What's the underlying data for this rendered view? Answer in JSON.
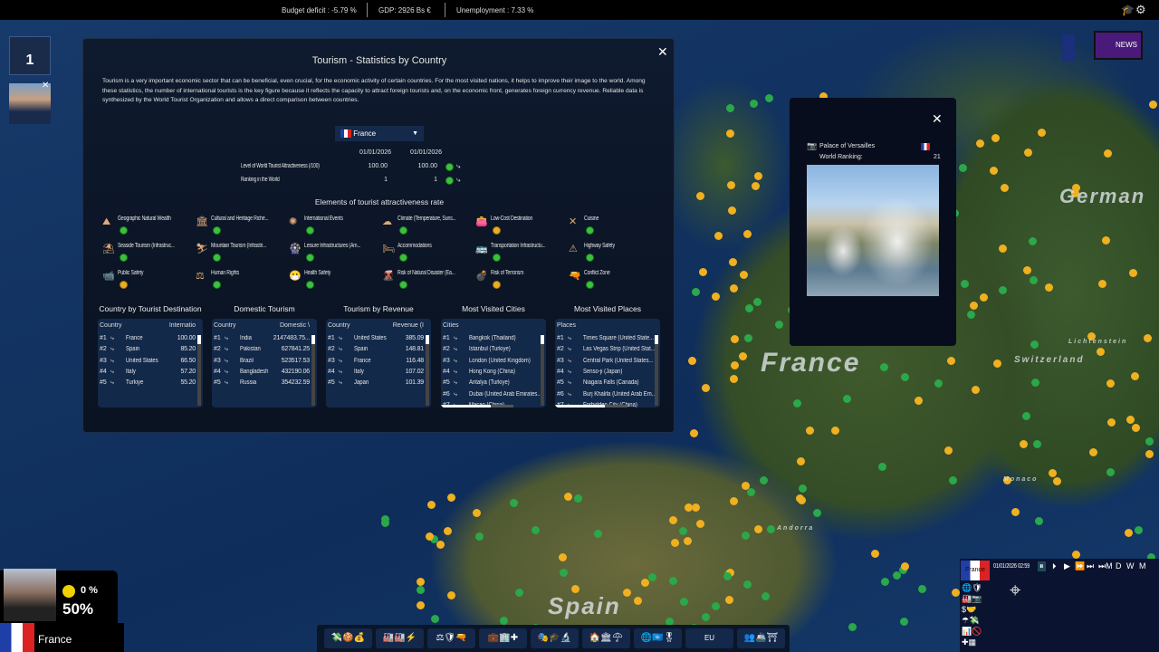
{
  "topbar": {
    "budget": "Budget deficit :   -5.79 %",
    "gdp": "GDP:    2926 Bs  €",
    "unemployment": "Unemployment :   7.33 %"
  },
  "left": {
    "ministers_count": "1"
  },
  "map_labels": {
    "france": "France",
    "germany": "German",
    "spain": "Spain",
    "switzerland": "Switzerland",
    "monaco": "Monaco",
    "andorra": "Andorra",
    "liechtenstein": "Lichtenstein"
  },
  "news": {
    "label": "NEWS"
  },
  "tourism": {
    "title": "Tourism - Statistics by Country",
    "description": "Tourism is a very important economic sector that can be beneficial, even crucial, for the economic activity of certain countries. For the most visited nations, it helps to improve their image to the world. Among these statistics, the number of international tourists is the key figure because it reflects the capacity to attract foreign tourists and, on the economic front, generates foreign currency revenue. Reliable data is synthesized by the World Tourist Organization and allows a direct comparison between countries.",
    "country_select": "France",
    "dates": [
      "01/01/2026",
      "01/01/2026"
    ],
    "stats": [
      {
        "label": "Level of World Tourist Attractiveness (/100)",
        "v1": "100.00",
        "v2": "100.00"
      },
      {
        "label": "Ranking in the World",
        "v1": "1",
        "v2": "1"
      }
    ],
    "elements_title": "Elements of tourist attractiveness rate",
    "elements": [
      {
        "label": "Geographic Natural Wealth",
        "icon": "⛰",
        "mood": "good"
      },
      {
        "label": "Cultural and Heritage Riche...",
        "icon": "🏛",
        "mood": "good"
      },
      {
        "label": "International Events",
        "icon": "✺",
        "mood": "good"
      },
      {
        "label": "Climate (Temperature, Suns...",
        "icon": "☁",
        "mood": "good"
      },
      {
        "label": "Low-Cost Destination",
        "icon": "👛",
        "mood": "neutral"
      },
      {
        "label": "Cuisine",
        "icon": "✕",
        "mood": "good"
      },
      {
        "label": "Seaside Tourism (Infrastruc...",
        "icon": "⛱",
        "mood": "good"
      },
      {
        "label": "Mountain Tourism (Infrastri...",
        "icon": "⛷",
        "mood": "good"
      },
      {
        "label": "Leisure Infrastructures (Am...",
        "icon": "🎡",
        "mood": "good"
      },
      {
        "label": "Accommodations",
        "icon": "🛏",
        "mood": "good"
      },
      {
        "label": "Transportation Infrastructu...",
        "icon": "🚌",
        "mood": "good"
      },
      {
        "label": "Highway Safety",
        "icon": "⚠",
        "mood": "good"
      },
      {
        "label": "Public Safety",
        "icon": "📹",
        "mood": "neutral"
      },
      {
        "label": "Human Rights",
        "icon": "⚖",
        "mood": "good"
      },
      {
        "label": "Health Safety",
        "icon": "😷",
        "mood": "good"
      },
      {
        "label": "Risk of Natural Disaster (Ea...",
        "icon": "🌋",
        "mood": "good"
      },
      {
        "label": "Risk of Terrorism",
        "icon": "💣",
        "mood": "neutral"
      },
      {
        "label": "Conflict Zone",
        "icon": "🔫",
        "mood": "good"
      }
    ],
    "tables": [
      {
        "title": "Country by Tourist Destination",
        "col1": "Country",
        "col2": "Internatio",
        "rows": [
          [
            "#1",
            "France",
            "100.00"
          ],
          [
            "#2",
            "Spain",
            "85.20"
          ],
          [
            "#3",
            "United States",
            "66.50"
          ],
          [
            "#4",
            "Italy",
            "57.20"
          ],
          [
            "#5",
            "Turkiye",
            "55.20"
          ]
        ]
      },
      {
        "title": "Domestic Tourism",
        "col1": "Country",
        "col2": "Domestic \\",
        "rows": [
          [
            "#1",
            "India",
            "2147483.75..."
          ],
          [
            "#2",
            "Pakistan",
            "627841.25"
          ],
          [
            "#3",
            "Brazil",
            "523517.53"
          ],
          [
            "#4",
            "Bangladesh",
            "432190.06"
          ],
          [
            "#5",
            "Russia",
            "354232.59"
          ]
        ]
      },
      {
        "title": "Tourism by Revenue",
        "col1": "Country",
        "col2": "Revenue (I",
        "rows": [
          [
            "#1",
            "United States",
            "385.09"
          ],
          [
            "#2",
            "Spain",
            "148.81"
          ],
          [
            "#3",
            "France",
            "116.48"
          ],
          [
            "#4",
            "Italy",
            "107.02"
          ],
          [
            "#5",
            "Japan",
            "101.39"
          ]
        ]
      },
      {
        "title": "Most Visited Cities",
        "col1": "Cities",
        "col2": "",
        "rows": [
          [
            "#1",
            "Bangkok (Thailand)",
            ""
          ],
          [
            "#2",
            "Istanbul (Turkiye)",
            ""
          ],
          [
            "#3",
            "London (United Kingdom)",
            ""
          ],
          [
            "#4",
            "Hong Kong (China)",
            ""
          ],
          [
            "#5",
            "Antalya (Turkiye)",
            ""
          ],
          [
            "#6",
            "Dubai (United Arab Emirates...",
            ""
          ],
          [
            "#7",
            "Macao (China)",
            ""
          ]
        ]
      },
      {
        "title": "Most Visited Places",
        "col1": "Places",
        "col2": "",
        "rows": [
          [
            "#1",
            "Times Square (United State...",
            ""
          ],
          [
            "#2",
            "Las Vegas Strip (United Stat...",
            ""
          ],
          [
            "#3",
            "Central Park (United States...",
            ""
          ],
          [
            "#4",
            "Senso-ji (Japan)",
            ""
          ],
          [
            "#5",
            "Niagara Falls (Canada)",
            ""
          ],
          [
            "#6",
            "Burj Khalifa (United Arab Em...",
            ""
          ],
          [
            "#7",
            "Forbidden City (China)",
            ""
          ]
        ]
      }
    ]
  },
  "place": {
    "name": "Palace of Versailles",
    "ranking_label": "World Ranking:",
    "ranking": "21"
  },
  "player": {
    "mood_pct": "0 %",
    "approval": "50%",
    "country": "France"
  },
  "toolbar": {
    "groups": [
      "💸🍪💰",
      "🏭🏭⚡",
      "⚖🛡🔫",
      "💼🏢✚",
      "🎭🎓🔬",
      "🏠🏛☂",
      "🌐🇺🇳🎖",
      "EU",
      "👥🚢⛩"
    ]
  },
  "minimap": {
    "country": "France",
    "datetime": "01/01/2026  02:59",
    "controls": [
      "⏸",
      "⏵",
      "▶",
      "⏩",
      "⏭",
      "⏭M",
      "D",
      "W",
      "M"
    ]
  }
}
